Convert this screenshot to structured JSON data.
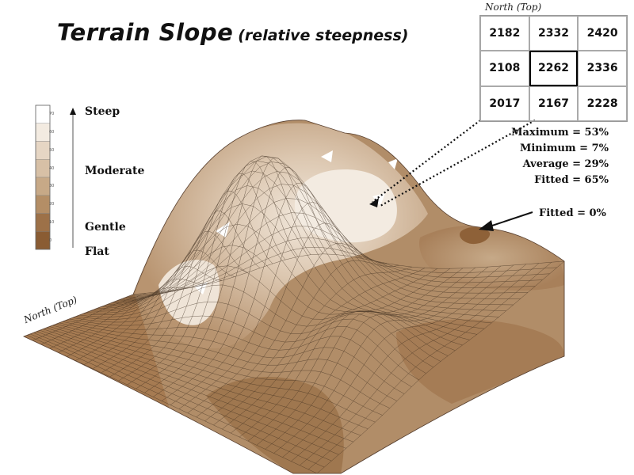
{
  "title": {
    "main": "Terrain Slope",
    "sub": "(relative steepness)"
  },
  "legend": {
    "categories": {
      "steep": "Steep",
      "moderate": "Moderate",
      "gentle": "Gentle",
      "flat": "Flat"
    },
    "ticks": [
      "70",
      "60",
      "50",
      "40",
      "30",
      "20",
      "10",
      "0"
    ],
    "colors": [
      "#ffffff",
      "#f3ebe1",
      "#e6d6c4",
      "#d7c0a6",
      "#c7a987",
      "#b48e66",
      "#9d7148",
      "#8a5c33"
    ]
  },
  "elevation_grid": {
    "label": "North (Top)",
    "cells": [
      "2182",
      "2332",
      "2420",
      "2108",
      "2262",
      "2336",
      "2017",
      "2167",
      "2228"
    ]
  },
  "stats": {
    "maximum": "Maximum = 53%",
    "minimum": "Minimum = 7%",
    "average": "Average = 29%",
    "fitted": "Fitted = 65%"
  },
  "fitted_zero": "Fitted = 0%",
  "surface_label": "North (Top)",
  "colors": {
    "surface_base": "#b4906b",
    "surface_light": "#ece0d2",
    "surface_mid": "#cdb398",
    "surface_dark": "#a07750",
    "mesh": "#3a2a1c",
    "wall": "#ffffff"
  }
}
